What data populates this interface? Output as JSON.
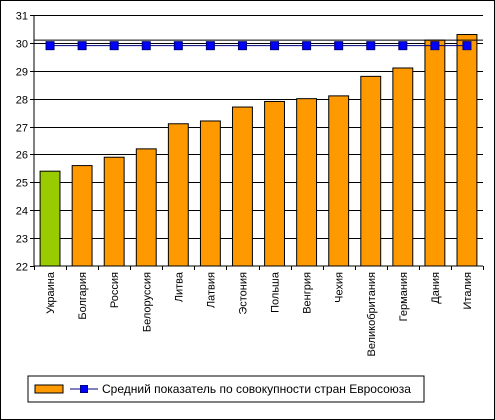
{
  "chart_data": {
    "type": "bar",
    "title": "",
    "xlabel": "",
    "ylabel": "",
    "categories": [
      "Украина",
      "Болгария",
      "Россия",
      "Белоруссия",
      "Литва",
      "Латвия",
      "Эстония",
      "Польша",
      "Венгрия",
      "Чехия",
      "Великобритания",
      "Германия",
      "Дания",
      "Италия"
    ],
    "ylim": [
      22,
      31
    ],
    "yticks": [
      22,
      23,
      24,
      25,
      26,
      27,
      28,
      29,
      30,
      31
    ],
    "grid": true,
    "series": [
      {
        "kind": "bar",
        "values": [
          25.4,
          25.6,
          25.9,
          26.2,
          27.1,
          27.2,
          27.7,
          27.9,
          28.0,
          28.1,
          28.8,
          29.1,
          30.1,
          30.3
        ],
        "colors": [
          "#99cc00",
          "#ff9900",
          "#ff9900",
          "#ff9900",
          "#ff9900",
          "#ff9900",
          "#ff9900",
          "#ff9900",
          "#ff9900",
          "#ff9900",
          "#ff9900",
          "#ff9900",
          "#ff9900",
          "#ff9900"
        ]
      },
      {
        "kind": "line",
        "name": "Средний показатель по совокупности стран Евросоюза",
        "values": [
          29.9,
          29.9,
          29.9,
          29.9,
          29.9,
          29.9,
          29.9,
          29.9,
          29.9,
          29.9,
          29.9,
          29.9,
          29.9,
          29.9
        ],
        "color": "#000080",
        "marker_color": "#0000ff"
      }
    ],
    "reference_line": 30.1,
    "legend": {
      "placement": "bottom",
      "label": "Средний показатель по совокупности стран Евросоюза"
    }
  }
}
